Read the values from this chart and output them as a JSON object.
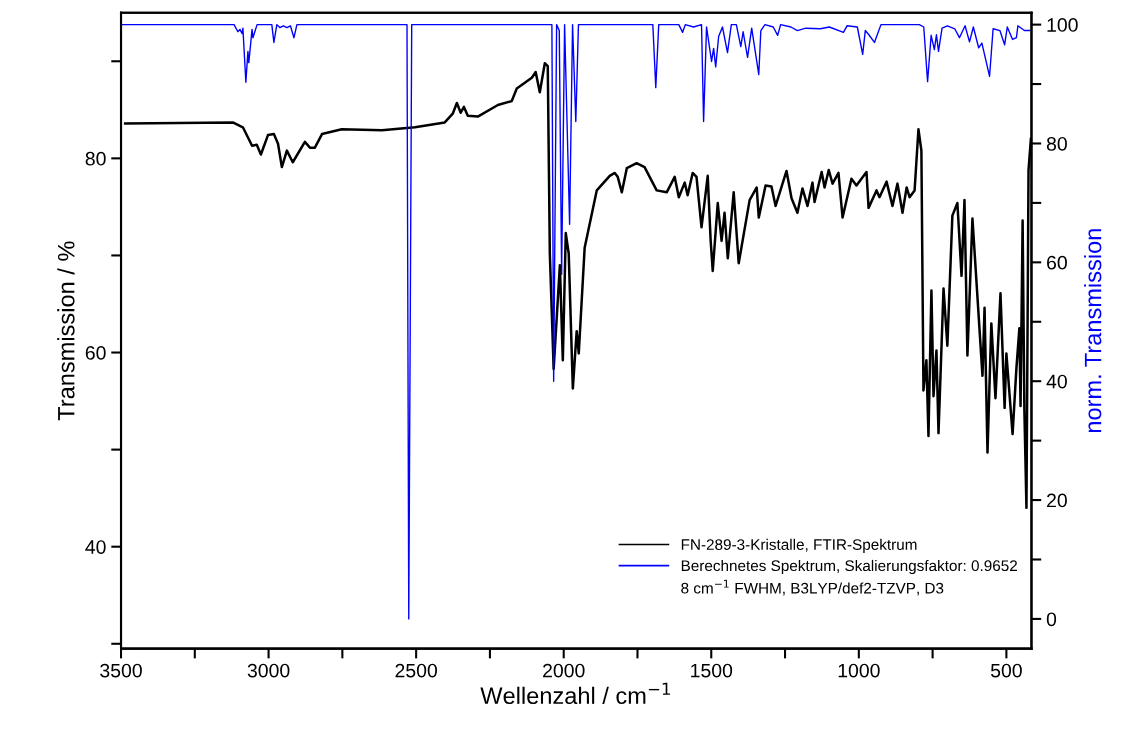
{
  "chart_data": {
    "type": "line",
    "xlabel": "Wellenzahl / cm$^{−1}$",
    "ylabel": "Transmission / %",
    "y2label": "norm. Transmission",
    "xlim": [
      3500,
      415
    ],
    "ylim": [
      29.5,
      95
    ],
    "y2lim": [
      -5,
      102
    ],
    "xticks": [
      3500,
      {
        "value": 3250,
        "label": null
      },
      3000,
      {
        "value": 2750,
        "label": null
      },
      2500,
      {
        "value": 2250,
        "label": null
      },
      2000,
      {
        "value": 1750,
        "label": null
      },
      1500,
      {
        "value": 1250,
        "label": null
      },
      1000,
      {
        "value": 750,
        "label": null
      },
      500
    ],
    "yticks": [
      {
        "value": 30,
        "label": null
      },
      40,
      {
        "value": 50,
        "label": null
      },
      60,
      {
        "value": 70,
        "label": null
      },
      80,
      {
        "value": 90,
        "label": null
      }
    ],
    "y2ticks": [
      0,
      {
        "value": 10,
        "label": null
      },
      20,
      {
        "value": 30,
        "label": null
      },
      40,
      {
        "value": 50,
        "label": null
      },
      60,
      {
        "value": 70,
        "label": null
      },
      80,
      {
        "value": 90,
        "label": null
      },
      100
    ],
    "legend": "bottom right",
    "grid": false,
    "marker": "none",
    "line_style": "solid",
    "annotations": [
      "8 cm$^{−1}$ FWHM, B3LYP/def2-TZVP, D3"
    ],
    "series": [
      {
        "name": "FN-289-3-Kristalle, FTIR-Spektrum",
        "color": "#000000",
        "x": [
          3486,
          3121,
          3087,
          3056,
          3040,
          3026,
          3002,
          2982,
          2968,
          2955,
          2938,
          2918,
          2877,
          2860,
          2843,
          2819,
          2752,
          2616,
          2504,
          2403,
          2376,
          2362,
          2349,
          2338,
          2325,
          2291,
          2223,
          2176,
          2159,
          2108,
          2095,
          2081,
          2064,
          2054,
          2047,
          2034,
          2013,
          2003,
          1993,
          1983,
          1969,
          1956,
          1949,
          1929,
          1888,
          1844,
          1827,
          1817,
          1803,
          1786,
          1753,
          1726,
          1685,
          1651,
          1624,
          1610,
          1590,
          1580,
          1563,
          1550,
          1533,
          1512,
          1502,
          1495,
          1478,
          1465,
          1455,
          1444,
          1424,
          1407,
          1370,
          1346,
          1339,
          1316,
          1296,
          1282,
          1245,
          1228,
          1208,
          1191,
          1174,
          1157,
          1150,
          1126,
          1116,
          1102,
          1089,
          1069,
          1055,
          1025,
          1008,
          974,
          967,
          940,
          930,
          906,
          886,
          869,
          852,
          838,
          828,
          811,
          798,
          788,
          781,
          771,
          764,
          754,
          747,
          737,
          730,
          713,
          700,
          683,
          666,
          652,
          642,
          632,
          615,
          581,
          574,
          564,
          551,
          537,
          520,
          506,
          500,
          479,
          466,
          456,
          452,
          445,
          439,
          432,
          425,
          417
        ],
        "values": [
          83.6,
          83.7,
          83.2,
          81.3,
          81.4,
          80.4,
          82.4,
          82.5,
          81.5,
          79.1,
          80.8,
          79.6,
          81.7,
          81.1,
          81.1,
          82.5,
          83.0,
          82.9,
          83.2,
          83.7,
          84.6,
          85.7,
          84.7,
          85.3,
          84.4,
          84.3,
          85.5,
          85.9,
          87.2,
          88.3,
          88.9,
          86.8,
          89.8,
          89.5,
          70.2,
          58.3,
          69.0,
          59.2,
          72.3,
          70.2,
          56.3,
          62.2,
          59.9,
          70.8,
          76.7,
          78.2,
          78.5,
          78.1,
          76.5,
          79.0,
          79.5,
          79.1,
          76.7,
          76.5,
          78.1,
          76.0,
          77.5,
          76.2,
          78.5,
          78.1,
          72.9,
          78.2,
          71.5,
          68.4,
          75.4,
          71.5,
          74.4,
          69.7,
          76.5,
          69.2,
          75.7,
          77.0,
          73.9,
          77.2,
          77.1,
          75.1,
          78.7,
          75.9,
          74.4,
          76.9,
          75.1,
          77.5,
          75.5,
          78.6,
          77.0,
          78.8,
          77.4,
          78.5,
          73.9,
          77.9,
          77.2,
          78.6,
          74.9,
          76.7,
          76.0,
          77.6,
          75.1,
          77.4,
          74.4,
          77.0,
          76.0,
          76.7,
          83.0,
          80.8,
          56.1,
          59.2,
          51.4,
          66.4,
          55.5,
          60.2,
          51.7,
          66.6,
          60.7,
          74.1,
          75.4,
          67.9,
          75.7,
          59.7,
          73.8,
          57.6,
          64.6,
          49.7,
          63.0,
          55.3,
          66.1,
          54.3,
          59.9,
          51.6,
          58.4,
          62.5,
          54.5,
          73.6,
          54.0,
          44.0,
          78.8,
          82.0
        ]
      },
      {
        "name": "Berechnetes Spektrum, Skalierungsfaktor: 0.9652",
        "color": "#0000ff",
        "axis": "y2",
        "x": [
          3500,
          3117,
          3104,
          3097,
          3090,
          3087,
          3077,
          3070,
          3067,
          3056,
          3053,
          3039,
          2989,
          2982,
          2972,
          2962,
          2950,
          2938,
          2926,
          2914,
          2904,
          2531,
          2525,
          2515,
          2044,
          2040,
          2034,
          2024,
          2015,
          2007,
          1997,
          1980,
          1970,
          1959,
          1950,
          1698,
          1688,
          1678,
          1610,
          1597,
          1588,
          1560,
          1533,
          1526,
          1516,
          1499,
          1492,
          1485,
          1475,
          1462,
          1445,
          1432,
          1415,
          1400,
          1392,
          1377,
          1363,
          1339,
          1332,
          1318,
          1290,
          1275,
          1265,
          1230,
          1208,
          1180,
          1130,
          1100,
          1052,
          1040,
          1005,
          987,
          978,
          966,
          947,
          925,
          795,
          780,
          767,
          755,
          744,
          737,
          730,
          718,
          700,
          675,
          659,
          640,
          625,
          612,
          594,
          583,
          557,
          545,
          522,
          506,
          497,
          479,
          466,
          461,
          439,
          422
        ],
        "values": [
          100,
          100,
          98.8,
          99.2,
          98.5,
          99.4,
          90.3,
          95.5,
          93.6,
          99.2,
          97.8,
          100,
          100,
          97.0,
          100,
          99.5,
          99.8,
          99.5,
          99.8,
          97.8,
          100,
          100,
          0,
          100,
          100,
          100,
          40,
          100,
          99,
          58,
          100,
          66.4,
          100,
          83.7,
          100,
          100,
          89.4,
          100,
          100,
          98.7,
          100,
          99.6,
          100,
          83.7,
          99.6,
          93.8,
          96,
          92.9,
          98,
          99.6,
          95.3,
          100,
          100,
          96.3,
          98.8,
          94.5,
          99.4,
          91.6,
          99,
          100,
          99.6,
          98.2,
          100,
          99.6,
          99,
          99.4,
          99.3,
          99.6,
          98.7,
          99.8,
          99.6,
          95,
          99,
          98.3,
          97,
          100,
          100,
          99.6,
          90.4,
          98.2,
          95.8,
          98.3,
          95.5,
          99.4,
          99.8,
          99.3,
          97.8,
          99.8,
          97.1,
          99.6,
          96.1,
          96.9,
          91.3,
          99.3,
          99,
          96.6,
          99.6,
          97.5,
          97.8,
          99.8,
          99,
          99
        ]
      }
    ]
  }
}
